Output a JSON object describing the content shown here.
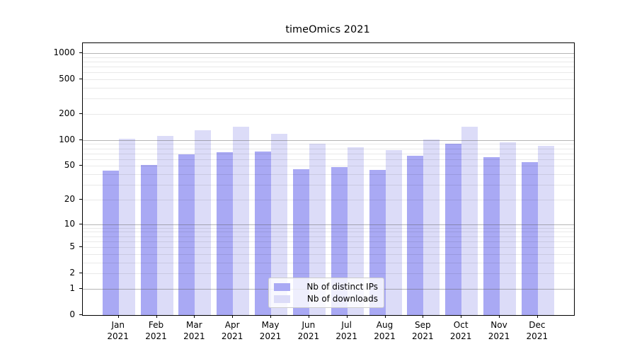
{
  "chart_data": {
    "type": "bar",
    "title": "timeOmics 2021",
    "xlabel": "",
    "ylabel": "",
    "yscale": "log1p",
    "ylim": [
      0,
      1300
    ],
    "grid": true,
    "ytick_values": [
      0,
      1,
      2,
      5,
      10,
      20,
      50,
      100,
      200,
      500,
      1000
    ],
    "ytick_labels": [
      "0",
      "1",
      "2",
      "5",
      "10",
      "20",
      "50",
      "100",
      "200",
      "500",
      "1000"
    ],
    "major_gridline_values": [
      1,
      10,
      100,
      1000
    ],
    "categories": [
      "Jan",
      "Feb",
      "Mar",
      "Apr",
      "May",
      "Jun",
      "Jul",
      "Aug",
      "Sep",
      "Oct",
      "Nov",
      "Dec"
    ],
    "category_year": "2021",
    "legend_position": "inside bottom-center",
    "series": [
      {
        "name": "Nb of distinct IPs",
        "color": "#a9a9f4",
        "values": [
          44,
          51,
          68,
          72,
          74,
          46,
          49,
          45,
          66,
          91,
          63,
          55
        ]
      },
      {
        "name": "Nb of downloads",
        "color": "#dcdcf8",
        "values": [
          104,
          112,
          129,
          144,
          118,
          90,
          83,
          76,
          102,
          144,
          94,
          86
        ]
      }
    ]
  }
}
